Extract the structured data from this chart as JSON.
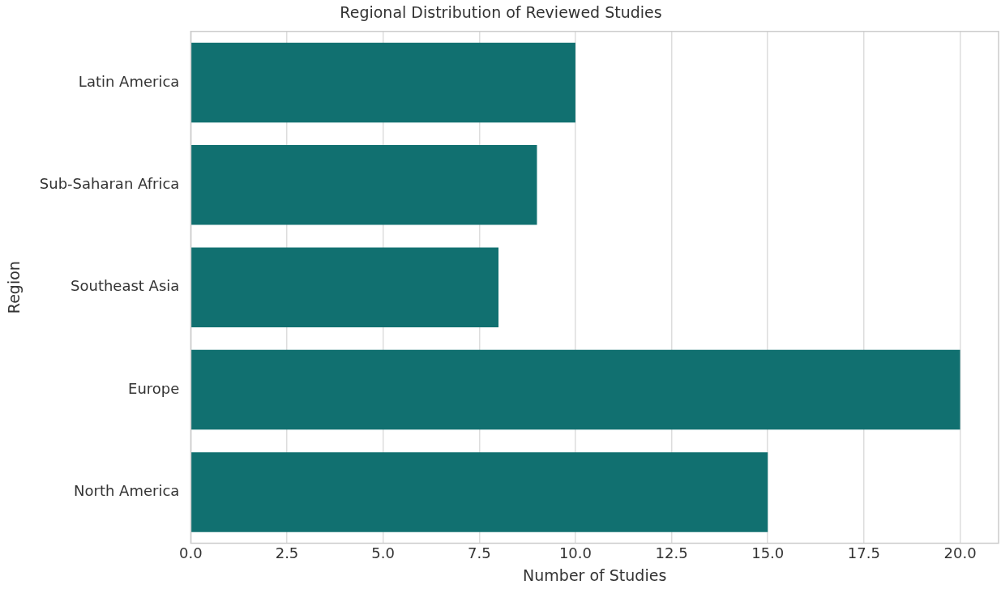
{
  "chart_data": {
    "type": "bar",
    "orientation": "horizontal",
    "title": "Regional Distribution of Reviewed Studies",
    "xlabel": "Number of Studies",
    "ylabel": "Region",
    "categories": [
      "Latin America",
      "Sub-Saharan Africa",
      "Southeast Asia",
      "Europe",
      "North America"
    ],
    "values": [
      10,
      9,
      8,
      20,
      15
    ],
    "color": "#117070",
    "xlim": [
      0,
      21
    ],
    "xticks": [
      {
        "value": 0,
        "label": "0.0"
      },
      {
        "value": 2.5,
        "label": "2.5"
      },
      {
        "value": 5,
        "label": "5.0"
      },
      {
        "value": 7.5,
        "label": "7.5"
      },
      {
        "value": 10,
        "label": "10.0"
      },
      {
        "value": 12.5,
        "label": "12.5"
      },
      {
        "value": 15,
        "label": "15.0"
      },
      {
        "value": 17.5,
        "label": "17.5"
      },
      {
        "value": 20,
        "label": "20.0"
      }
    ],
    "grid": "x"
  }
}
